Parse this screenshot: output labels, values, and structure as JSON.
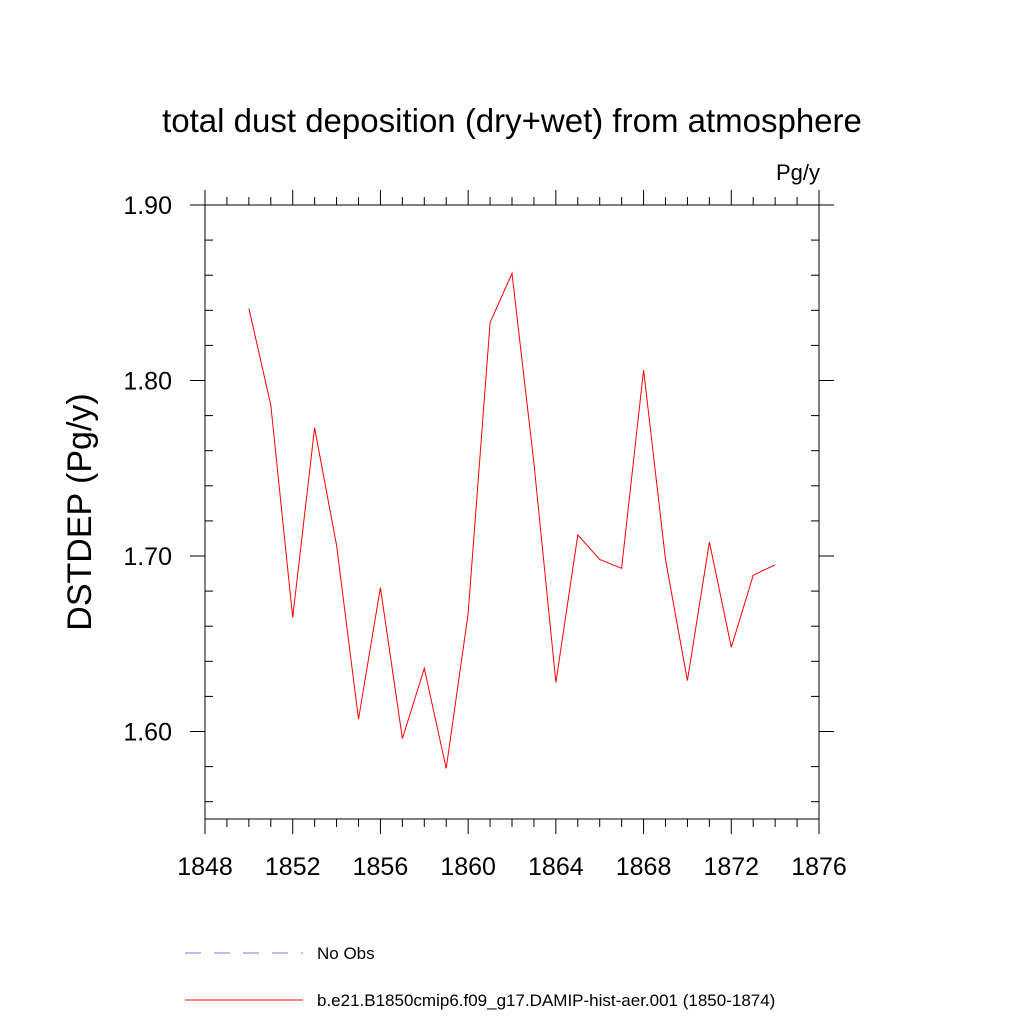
{
  "chart_data": {
    "type": "line",
    "title": "total dust deposition (dry+wet) from atmosphere",
    "units_label": "Pg/y",
    "ylabel": "DSTDEP  (Pg/y)",
    "xlabel": "",
    "xlim": [
      1848,
      1876
    ],
    "ylim": [
      1.55,
      1.91
    ],
    "x_ticks": [
      1848,
      1852,
      1856,
      1860,
      1864,
      1868,
      1872,
      1876
    ],
    "x_tick_labels": [
      "1848",
      "1852",
      "1856",
      "1860",
      "1864",
      "1868",
      "1872",
      "1876"
    ],
    "y_ticks": [
      1.6,
      1.7,
      1.8,
      1.9
    ],
    "y_tick_labels": [
      "1.60",
      "1.70",
      "1.80",
      "1.90"
    ],
    "grid": false,
    "legend_position": "bottom",
    "series": [
      {
        "name": "b.e21.B1850cmip6.f09_g17.DAMIP-hist-aer.001 (1850-1874)",
        "color": "#ff0000",
        "style": "solid",
        "x": [
          1850,
          1851,
          1852,
          1853,
          1854,
          1855,
          1856,
          1857,
          1858,
          1859,
          1860,
          1861,
          1862,
          1863,
          1864,
          1865,
          1866,
          1867,
          1868,
          1869,
          1870,
          1871,
          1872,
          1873,
          1874
        ],
        "y": [
          1.841,
          1.786,
          1.665,
          1.773,
          1.706,
          1.607,
          1.682,
          1.596,
          1.636,
          1.579,
          1.667,
          1.833,
          1.861,
          1.753,
          1.628,
          1.712,
          1.698,
          1.693,
          1.806,
          1.698,
          1.629,
          1.708,
          1.648,
          1.689,
          1.695
        ]
      }
    ],
    "legend": [
      {
        "label": "No Obs",
        "color": "#7b7bd6",
        "style": "dashed"
      },
      {
        "label": "b.e21.B1850cmip6.f09_g17.DAMIP-hist-aer.001 (1850-1874)",
        "color": "#ff0000",
        "style": "solid"
      }
    ]
  }
}
